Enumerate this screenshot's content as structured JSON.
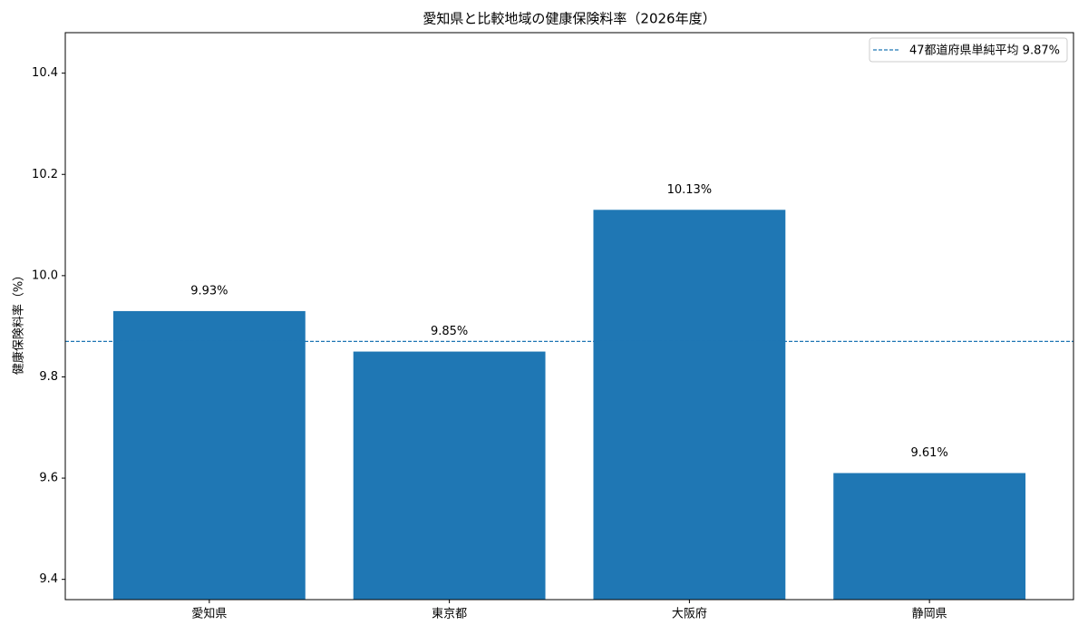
{
  "chart_data": {
    "type": "bar",
    "title": "愛知県と比較地域の健康保険料率（2026年度）",
    "ylabel": "健康保険料率（%）",
    "categories": [
      "愛知県",
      "東京都",
      "大阪府",
      "静岡県"
    ],
    "values": [
      9.93,
      9.85,
      10.13,
      9.61
    ],
    "value_labels": [
      "9.93%",
      "9.85%",
      "10.13%",
      "9.61%"
    ],
    "color": "#1f77b4",
    "ylim": [
      9.36,
      10.48
    ],
    "yticks": [
      9.4,
      9.6,
      9.8,
      {
        "value": 10,
        "label": "10.0"
      },
      10.2,
      10.4
    ],
    "reference_line": {
      "value": 9.87,
      "label": "47都道府県単純平均 9.87%",
      "color": "#1f77b4",
      "style": "dashed"
    },
    "legend": "upper right",
    "grid": false
  }
}
